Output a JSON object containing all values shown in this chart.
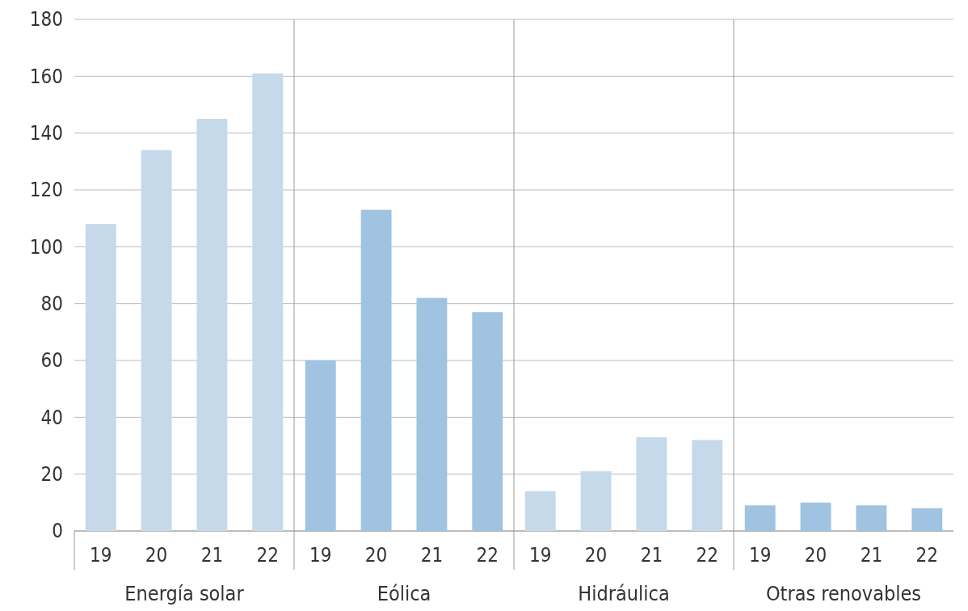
{
  "chart_data": {
    "type": "bar",
    "categories": [
      "Energía solar",
      "Eólica",
      "Hidráulica",
      "Otras renovables"
    ],
    "series": [
      {
        "name": "19",
        "colors": [
          "#c5d9ea",
          "#9fc3e0",
          "#c5d9ea",
          "#9fc3e0"
        ],
        "values": [
          108,
          60,
          14,
          9
        ]
      },
      {
        "name": "20",
        "colors": [
          "#c5d9ea",
          "#9fc3e0",
          "#c5d9ea",
          "#9fc3e0"
        ],
        "values": [
          134,
          113,
          21,
          10
        ]
      },
      {
        "name": "21",
        "colors": [
          "#c5d9ea",
          "#9fc3e0",
          "#c5d9ea",
          "#9fc3e0"
        ],
        "values": [
          145,
          82,
          33,
          9
        ]
      },
      {
        "name": "22",
        "colors": [
          "#c5d9ea",
          "#9fc3e0",
          "#c5d9ea",
          "#9fc3e0"
        ],
        "values": [
          161,
          77,
          32,
          8
        ]
      }
    ],
    "ylim": [
      0,
      180
    ],
    "yticks": [
      0,
      20,
      40,
      60,
      80,
      100,
      120,
      140,
      160,
      180
    ],
    "grid": true
  }
}
